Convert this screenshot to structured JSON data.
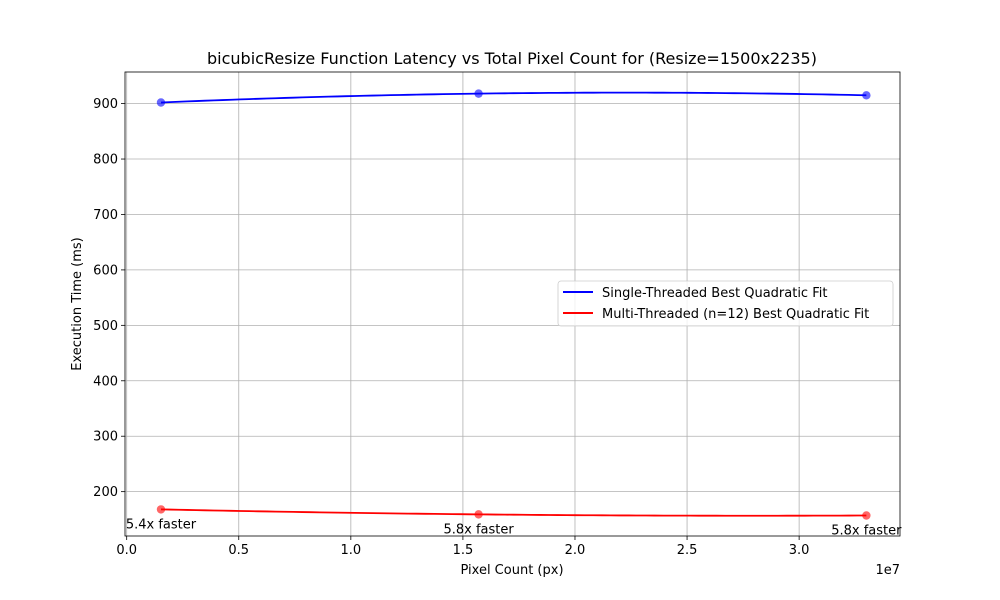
{
  "chart_data": {
    "type": "line",
    "title": "bicubicResize Function Latency vs Total Pixel Count for (Resize=1500x2235)",
    "xlabel": "Pixel Count (px)",
    "ylabel": "Execution Time (ms)",
    "x_offset_label": "1e7",
    "x_scale": 10000000,
    "xlim": [
      -0.0075,
      3.45
    ],
    "ylim": [
      120,
      957
    ],
    "x_ticks": [
      0.0,
      0.5,
      1.0,
      1.5,
      2.0,
      2.5,
      3.0
    ],
    "x_tick_labels": [
      "0.0",
      "0.5",
      "1.0",
      "1.5",
      "2.0",
      "2.5",
      "3.0"
    ],
    "y_ticks": [
      200,
      300,
      400,
      500,
      600,
      700,
      800,
      900
    ],
    "y_tick_labels": [
      "200",
      "300",
      "400",
      "500",
      "600",
      "700",
      "800",
      "900"
    ],
    "grid": true,
    "legend_position": "center-right",
    "series": [
      {
        "name": "Single-Threaded Best Quadratic Fit",
        "color": "#0000ff",
        "x": [
          0.153,
          1.57,
          3.3
        ],
        "y": [
          902,
          918,
          915
        ]
      },
      {
        "name": "Multi-Threaded (n=12) Best Quadratic Fit",
        "color": "#ff0000",
        "x": [
          0.153,
          1.57,
          3.3
        ],
        "y": [
          168,
          159,
          157
        ]
      }
    ],
    "annotations": [
      {
        "text": "5.4x faster",
        "x": 0.153,
        "y": 168
      },
      {
        "text": "5.8x faster",
        "x": 1.57,
        "y": 159
      },
      {
        "text": "5.8x faster",
        "x": 3.3,
        "y": 157
      }
    ]
  }
}
